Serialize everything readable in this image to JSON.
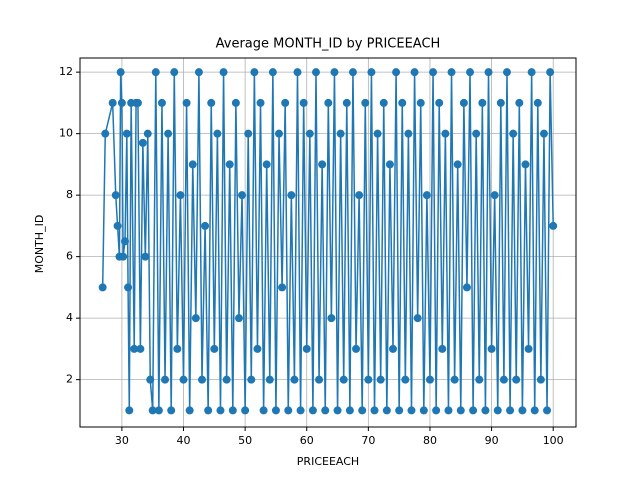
{
  "chart_data": {
    "type": "line",
    "title": "Average MONTH_ID by PRICEEACH",
    "x_label": "PRICEEACH",
    "y_label": "MONTH_ID",
    "color": "#1f77b4",
    "grid": true,
    "xlim": [
      23.2,
      103.7
    ],
    "ylim": [
      0.46,
      12.46
    ],
    "xticks": [
      30,
      40,
      50,
      60,
      70,
      80,
      90,
      100
    ],
    "yticks": [
      2,
      4,
      6,
      8,
      10,
      12
    ],
    "x": [
      26.88,
      27.3,
      28.5,
      29,
      29.3,
      29.6,
      29.8,
      30,
      30.2,
      30.5,
      30.8,
      31,
      31.2,
      31.5,
      32,
      32.3,
      32.6,
      33,
      33.4,
      33.8,
      34.2,
      34.6,
      35,
      35.5,
      36,
      36.5,
      37,
      37.5,
      38,
      38.5,
      39,
      39.5,
      40,
      40.5,
      41,
      41.5,
      42,
      42.5,
      43,
      43.5,
      44,
      44.5,
      45,
      45.5,
      46,
      46.5,
      47,
      47.5,
      48,
      48.5,
      49,
      49.5,
      50,
      50.5,
      51,
      51.5,
      52,
      52.5,
      53,
      53.5,
      54,
      54.5,
      55,
      55.5,
      56,
      56.5,
      57,
      57.5,
      58,
      58.5,
      59,
      59.5,
      60,
      60.5,
      61,
      61.5,
      62,
      62.5,
      63,
      63.5,
      64,
      64.5,
      65,
      65.5,
      66,
      66.5,
      67,
      67.5,
      68,
      68.5,
      69,
      69.5,
      70,
      70.5,
      71,
      71.5,
      72,
      72.5,
      73,
      73.5,
      74,
      74.5,
      75,
      75.5,
      76,
      76.5,
      77,
      77.5,
      78,
      78.5,
      79,
      79.5,
      80,
      80.5,
      81,
      81.5,
      82,
      82.5,
      83,
      83.5,
      84,
      84.5,
      85,
      85.5,
      86,
      86.5,
      87,
      87.5,
      88,
      88.5,
      89,
      89.5,
      90,
      90.5,
      91,
      91.5,
      92,
      92.5,
      93,
      93.5,
      94,
      94.5,
      95,
      95.5,
      96,
      96.5,
      97,
      97.5,
      98,
      98.5,
      99,
      99.5,
      100
    ],
    "values": [
      5,
      10,
      11,
      8,
      7,
      6,
      12,
      11,
      6,
      6.5,
      10,
      5,
      1,
      11,
      3,
      11,
      11,
      3,
      9.7,
      6,
      10,
      2,
      1,
      12,
      1,
      11,
      2,
      10,
      1,
      12,
      3,
      8,
      2,
      11,
      1,
      9,
      4,
      12,
      2,
      7,
      1,
      11,
      3,
      10,
      1,
      12,
      2,
      9,
      1,
      11,
      4,
      8,
      1,
      10,
      2,
      12,
      3,
      11,
      1,
      9,
      2,
      12,
      1,
      10,
      5,
      11,
      1,
      8,
      2,
      12,
      1,
      11,
      3,
      10,
      1,
      12,
      2,
      9,
      1,
      11,
      4,
      12,
      1,
      10,
      2,
      11,
      1,
      12,
      3,
      8,
      1,
      11,
      2,
      12,
      1,
      10,
      2,
      11,
      1,
      9,
      3,
      12,
      1,
      11,
      2,
      10,
      1,
      12,
      4,
      11,
      1,
      8,
      2,
      12,
      1,
      11,
      3,
      10,
      1,
      12,
      2,
      9,
      1,
      11,
      5,
      12,
      1,
      10,
      2,
      11,
      1,
      12,
      3,
      8,
      1,
      11,
      2,
      12,
      1,
      10,
      2,
      11,
      1,
      9,
      3,
      12,
      1,
      11,
      2,
      10,
      1,
      12,
      7
    ]
  }
}
